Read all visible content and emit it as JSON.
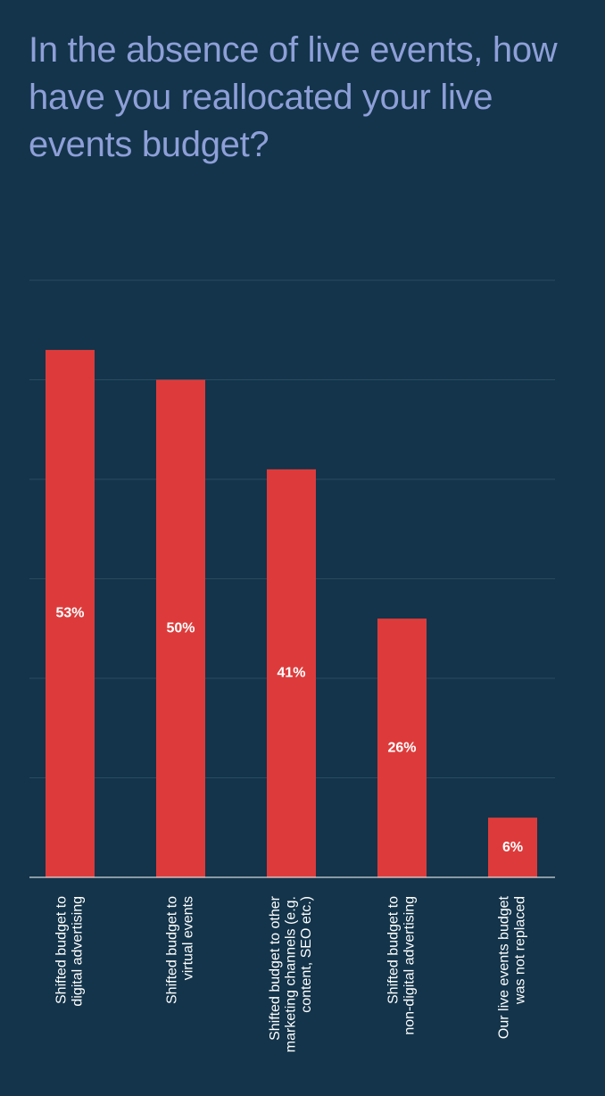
{
  "chart_data": {
    "type": "bar",
    "title": "In the absence of live events, how have you reallocated your live events budget?",
    "categories": [
      "Shifted budget to\ndigital advertising",
      "Shifted budget to\nvirtual events",
      "Shifted budget to other\nmarketing channels (e.g.\ncontent, SEO etc.)",
      "Shifted budget to\nnon-digital advertising",
      "Our live events budget\nwas not replaced"
    ],
    "values": [
      53,
      50,
      41,
      26,
      6
    ],
    "value_labels": [
      "53%",
      "50%",
      "41%",
      "26%",
      "6%"
    ],
    "color": "#dd3b3b",
    "ylim": [
      0,
      60
    ],
    "yticks": [
      0,
      10,
      20,
      30,
      40,
      50,
      60
    ],
    "grid": true
  }
}
